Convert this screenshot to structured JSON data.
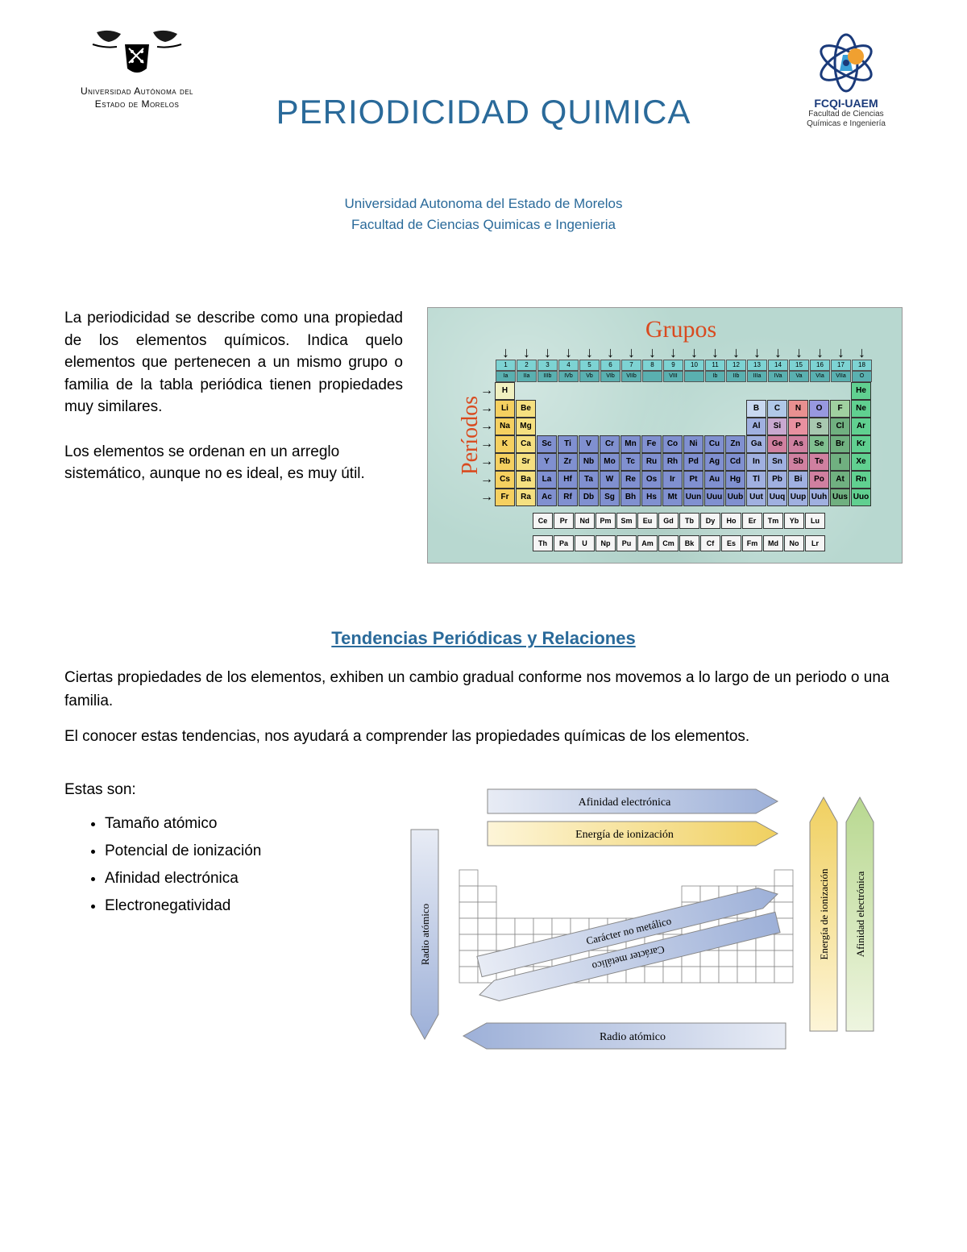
{
  "header": {
    "left_logo": {
      "line1": "Universidad Autónoma del",
      "line2": "Estado de Morelos",
      "crest_colors": {
        "dark": "#1a1a1a",
        "accent": "#333333"
      }
    },
    "right_logo": {
      "name": "FCQI-UAEM",
      "sub1": "Facultad de Ciencias",
      "sub2": "Químicas e Ingeniería",
      "colors": {
        "orbit": "#1a3a7a",
        "flask": "#3aa0d8",
        "gear": "#f0a030"
      }
    },
    "title": "PERIODICIDAD QUIMICA",
    "subtitle1": "Universidad Autonoma del Estado de Morelos",
    "subtitle2": "Facultad de Ciencias Quimicas e Ingenieria",
    "title_color": "#2a6a9a"
  },
  "section1": {
    "para1": "La periodicidad se describe como una propiedad de los elementos químicos. Indica quelo elementos que pertenecen a un mismo grupo o familia de la tabla periódica tienen propiedades muy similares.",
    "para2": "Los elementos se ordenan en un arreglo sistemático, aunque no es ideal, es muy útil."
  },
  "periodic_table": {
    "label_groups": "Grupos",
    "label_periods": "Períodos",
    "label_color": "#d94a1f",
    "bg_color": "#b8d8d0",
    "header_bg": "#7dd3d3",
    "header_nums": [
      "1",
      "2",
      "3",
      "4",
      "5",
      "6",
      "7",
      "8",
      "9",
      "10",
      "11",
      "12",
      "13",
      "14",
      "15",
      "16",
      "17",
      "18"
    ],
    "header_roman": [
      "Ia",
      "IIa",
      "IIIb",
      "IVb",
      "Vb",
      "VIb",
      "VIIb",
      "",
      "VIII",
      "",
      "Ib",
      "IIb",
      "IIIa",
      "IVa",
      "Va",
      "VIa",
      "VIIa",
      "O"
    ],
    "colors": {
      "alkali": "#f5d060",
      "alkaline": "#f5e080",
      "transition": "#8090d0",
      "posttrans": "#a0b0e0",
      "metalloid": "#d080a0",
      "nonmetal": "#80c090",
      "halogen": "#70b080",
      "noble": "#60d090",
      "lanth": "#f5f5f5",
      "hydrogen": "#f0f0c0",
      "boron": "#c8d8f0",
      "carbon": "#b0c8e8",
      "nitrogen": "#e89090",
      "oxygen": "#9898e0",
      "fluorine": "#a0d0a0",
      "silicon": "#c8a8d0",
      "phosphorus": "#e890a0",
      "sulfur": "#a8c8b0"
    },
    "rows": [
      [
        {
          "s": "H",
          "c": "hydrogen"
        },
        null,
        null,
        null,
        null,
        null,
        null,
        null,
        null,
        null,
        null,
        null,
        null,
        null,
        null,
        null,
        null,
        {
          "s": "He",
          "c": "noble"
        }
      ],
      [
        {
          "s": "Li",
          "c": "alkali"
        },
        {
          "s": "Be",
          "c": "alkaline"
        },
        null,
        null,
        null,
        null,
        null,
        null,
        null,
        null,
        null,
        null,
        {
          "s": "B",
          "c": "boron"
        },
        {
          "s": "C",
          "c": "carbon"
        },
        {
          "s": "N",
          "c": "nitrogen"
        },
        {
          "s": "O",
          "c": "oxygen"
        },
        {
          "s": "F",
          "c": "fluorine"
        },
        {
          "s": "Ne",
          "c": "noble"
        }
      ],
      [
        {
          "s": "Na",
          "c": "alkali"
        },
        {
          "s": "Mg",
          "c": "alkaline"
        },
        null,
        null,
        null,
        null,
        null,
        null,
        null,
        null,
        null,
        null,
        {
          "s": "Al",
          "c": "posttrans"
        },
        {
          "s": "Si",
          "c": "silicon"
        },
        {
          "s": "P",
          "c": "phosphorus"
        },
        {
          "s": "S",
          "c": "sulfur"
        },
        {
          "s": "Cl",
          "c": "halogen"
        },
        {
          "s": "Ar",
          "c": "noble"
        }
      ],
      [
        {
          "s": "K",
          "c": "alkali"
        },
        {
          "s": "Ca",
          "c": "alkaline"
        },
        {
          "s": "Sc",
          "c": "transition"
        },
        {
          "s": "Ti",
          "c": "transition"
        },
        {
          "s": "V",
          "c": "transition"
        },
        {
          "s": "Cr",
          "c": "transition"
        },
        {
          "s": "Mn",
          "c": "transition"
        },
        {
          "s": "Fe",
          "c": "transition"
        },
        {
          "s": "Co",
          "c": "transition"
        },
        {
          "s": "Ni",
          "c": "transition"
        },
        {
          "s": "Cu",
          "c": "transition"
        },
        {
          "s": "Zn",
          "c": "transition"
        },
        {
          "s": "Ga",
          "c": "posttrans"
        },
        {
          "s": "Ge",
          "c": "metalloid"
        },
        {
          "s": "As",
          "c": "metalloid"
        },
        {
          "s": "Se",
          "c": "nonmetal"
        },
        {
          "s": "Br",
          "c": "halogen"
        },
        {
          "s": "Kr",
          "c": "noble"
        }
      ],
      [
        {
          "s": "Rb",
          "c": "alkali"
        },
        {
          "s": "Sr",
          "c": "alkaline"
        },
        {
          "s": "Y",
          "c": "transition"
        },
        {
          "s": "Zr",
          "c": "transition"
        },
        {
          "s": "Nb",
          "c": "transition"
        },
        {
          "s": "Mo",
          "c": "transition"
        },
        {
          "s": "Tc",
          "c": "transition"
        },
        {
          "s": "Ru",
          "c": "transition"
        },
        {
          "s": "Rh",
          "c": "transition"
        },
        {
          "s": "Pd",
          "c": "transition"
        },
        {
          "s": "Ag",
          "c": "transition"
        },
        {
          "s": "Cd",
          "c": "transition"
        },
        {
          "s": "In",
          "c": "posttrans"
        },
        {
          "s": "Sn",
          "c": "posttrans"
        },
        {
          "s": "Sb",
          "c": "metalloid"
        },
        {
          "s": "Te",
          "c": "metalloid"
        },
        {
          "s": "I",
          "c": "halogen"
        },
        {
          "s": "Xe",
          "c": "noble"
        }
      ],
      [
        {
          "s": "Cs",
          "c": "alkali"
        },
        {
          "s": "Ba",
          "c": "alkaline"
        },
        {
          "s": "La",
          "c": "transition"
        },
        {
          "s": "Hf",
          "c": "transition"
        },
        {
          "s": "Ta",
          "c": "transition"
        },
        {
          "s": "W",
          "c": "transition"
        },
        {
          "s": "Re",
          "c": "transition"
        },
        {
          "s": "Os",
          "c": "transition"
        },
        {
          "s": "Ir",
          "c": "transition"
        },
        {
          "s": "Pt",
          "c": "transition"
        },
        {
          "s": "Au",
          "c": "transition"
        },
        {
          "s": "Hg",
          "c": "transition"
        },
        {
          "s": "Tl",
          "c": "posttrans"
        },
        {
          "s": "Pb",
          "c": "posttrans"
        },
        {
          "s": "Bi",
          "c": "posttrans"
        },
        {
          "s": "Po",
          "c": "metalloid"
        },
        {
          "s": "At",
          "c": "halogen"
        },
        {
          "s": "Rn",
          "c": "noble"
        }
      ],
      [
        {
          "s": "Fr",
          "c": "alkali"
        },
        {
          "s": "Ra",
          "c": "alkaline"
        },
        {
          "s": "Ac",
          "c": "transition"
        },
        {
          "s": "Rf",
          "c": "transition"
        },
        {
          "s": "Db",
          "c": "transition"
        },
        {
          "s": "Sg",
          "c": "transition"
        },
        {
          "s": "Bh",
          "c": "transition"
        },
        {
          "s": "Hs",
          "c": "transition"
        },
        {
          "s": "Mt",
          "c": "transition"
        },
        {
          "s": "Uun",
          "c": "transition"
        },
        {
          "s": "Uuu",
          "c": "transition"
        },
        {
          "s": "Uub",
          "c": "transition"
        },
        {
          "s": "Uut",
          "c": "posttrans"
        },
        {
          "s": "Uuq",
          "c": "posttrans"
        },
        {
          "s": "Uup",
          "c": "posttrans"
        },
        {
          "s": "Uuh",
          "c": "posttrans"
        },
        {
          "s": "Uus",
          "c": "halogen"
        },
        {
          "s": "Uuo",
          "c": "noble"
        }
      ]
    ],
    "lanthanides": [
      "Ce",
      "Pr",
      "Nd",
      "Pm",
      "Sm",
      "Eu",
      "Gd",
      "Tb",
      "Dy",
      "Ho",
      "Er",
      "Tm",
      "Yb",
      "Lu"
    ],
    "actinides": [
      "Th",
      "Pa",
      "U",
      "Np",
      "Pu",
      "Am",
      "Cm",
      "Bk",
      "Cf",
      "Es",
      "Fm",
      "Md",
      "No",
      "Lr"
    ]
  },
  "section2": {
    "title": "Tendencias Periódicas y Relaciones",
    "para1": "Ciertas propiedades de los elementos, exhiben un cambio gradual conforme nos movemos a lo largo de un periodo o una familia.",
    "para2": "El conocer estas tendencias, nos ayudará a comprender las propiedades químicas de los elementos."
  },
  "section3": {
    "intro": "Estas son:",
    "bullets": [
      "Tamaño atómico",
      "Potencial de ionización",
      "Afinidad electrónica",
      "Electronegatividad"
    ]
  },
  "trends": {
    "labels": {
      "afinidad_h": "Afinidad electrónica",
      "energia_h": "Energía de ionización",
      "radio_h": "Radio atómico",
      "radio_v": "Radio atómico",
      "energia_v": "Energía de ionización",
      "afinidad_v": "Afinidad electrónica",
      "no_metal": "Carácter no metálico",
      "metal": "Carácter metálico"
    },
    "colors": {
      "blue_light": "#c5d0e8",
      "blue_mid": "#9db0d8",
      "blue_dark": "#7a90c8",
      "yellow": "#f0d060",
      "green": "#b8d890",
      "grid": "#888888",
      "text": "#000000"
    }
  }
}
